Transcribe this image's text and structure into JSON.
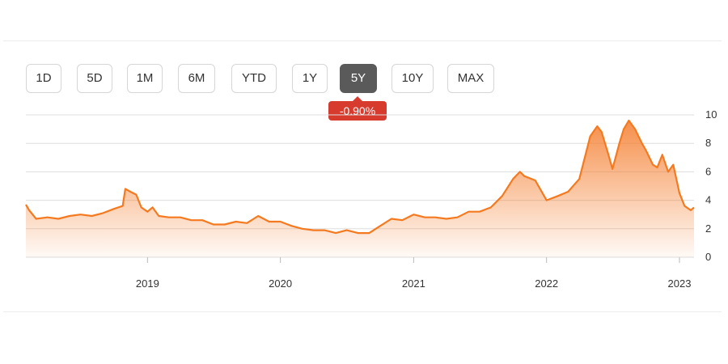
{
  "range_selector": {
    "buttons": [
      {
        "label": "1D",
        "active": false
      },
      {
        "label": "5D",
        "active": false
      },
      {
        "label": "1M",
        "active": false
      },
      {
        "label": "6M",
        "active": false
      },
      {
        "label": "YTD",
        "active": false
      },
      {
        "label": "1Y",
        "active": false
      },
      {
        "label": "5Y",
        "active": true
      },
      {
        "label": "10Y",
        "active": false
      },
      {
        "label": "MAX",
        "active": false
      }
    ]
  },
  "change_badge": {
    "text": "-0.90%",
    "color": "#d63b2e"
  },
  "colors": {
    "line": "#f57a1f",
    "area_top": "#f47b2a",
    "grid": "#dddddd"
  },
  "chart_data": {
    "type": "area",
    "title": "",
    "xlabel": "",
    "ylabel": "",
    "ylim": [
      0,
      10
    ],
    "y_ticks": [
      "0",
      "2",
      "4",
      "6",
      "8",
      "10"
    ],
    "y_axis_position": "right",
    "x_ticks": [
      {
        "label": "2019",
        "date": "2019-01-01"
      },
      {
        "label": "2020",
        "date": "2020-01-01"
      },
      {
        "label": "2021",
        "date": "2021-01-01"
      },
      {
        "label": "2022",
        "date": "2022-01-01"
      },
      {
        "label": "2023",
        "date": "2023-01-01"
      }
    ],
    "x_range": [
      "2018-02-01",
      "2023-02-10"
    ],
    "grid": true,
    "legend": "none",
    "series": [
      {
        "points": [
          [
            "2018-02-01",
            3.7
          ],
          [
            "2018-02-10",
            3.3
          ],
          [
            "2018-03-01",
            2.7
          ],
          [
            "2018-04-01",
            2.8
          ],
          [
            "2018-05-01",
            2.7
          ],
          [
            "2018-06-01",
            2.9
          ],
          [
            "2018-07-01",
            3.0
          ],
          [
            "2018-08-01",
            2.9
          ],
          [
            "2018-09-01",
            3.1
          ],
          [
            "2018-10-01",
            3.4
          ],
          [
            "2018-10-25",
            3.6
          ],
          [
            "2018-11-01",
            4.8
          ],
          [
            "2018-11-15",
            4.6
          ],
          [
            "2018-12-01",
            4.4
          ],
          [
            "2018-12-15",
            3.5
          ],
          [
            "2019-01-01",
            3.2
          ],
          [
            "2019-01-15",
            3.5
          ],
          [
            "2019-02-01",
            2.9
          ],
          [
            "2019-03-01",
            2.8
          ],
          [
            "2019-04-01",
            2.8
          ],
          [
            "2019-05-01",
            2.6
          ],
          [
            "2019-06-01",
            2.6
          ],
          [
            "2019-07-01",
            2.3
          ],
          [
            "2019-08-01",
            2.3
          ],
          [
            "2019-09-01",
            2.5
          ],
          [
            "2019-10-01",
            2.4
          ],
          [
            "2019-11-01",
            2.9
          ],
          [
            "2019-12-01",
            2.5
          ],
          [
            "2020-01-01",
            2.5
          ],
          [
            "2020-02-01",
            2.2
          ],
          [
            "2020-03-01",
            2.0
          ],
          [
            "2020-04-01",
            1.9
          ],
          [
            "2020-05-01",
            1.9
          ],
          [
            "2020-06-01",
            1.7
          ],
          [
            "2020-07-01",
            1.9
          ],
          [
            "2020-08-01",
            1.7
          ],
          [
            "2020-09-01",
            1.7
          ],
          [
            "2020-10-01",
            2.2
          ],
          [
            "2020-11-01",
            2.7
          ],
          [
            "2020-12-01",
            2.6
          ],
          [
            "2021-01-01",
            3.0
          ],
          [
            "2021-02-01",
            2.8
          ],
          [
            "2021-03-01",
            2.8
          ],
          [
            "2021-04-01",
            2.7
          ],
          [
            "2021-05-01",
            2.8
          ],
          [
            "2021-06-01",
            3.2
          ],
          [
            "2021-07-01",
            3.2
          ],
          [
            "2021-08-01",
            3.5
          ],
          [
            "2021-09-01",
            4.3
          ],
          [
            "2021-10-01",
            5.5
          ],
          [
            "2021-10-20",
            6.0
          ],
          [
            "2021-11-01",
            5.7
          ],
          [
            "2021-12-01",
            5.4
          ],
          [
            "2022-01-01",
            4.0
          ],
          [
            "2022-02-01",
            4.3
          ],
          [
            "2022-03-01",
            4.6
          ],
          [
            "2022-04-01",
            5.5
          ],
          [
            "2022-05-01",
            8.5
          ],
          [
            "2022-05-20",
            9.2
          ],
          [
            "2022-06-01",
            8.8
          ],
          [
            "2022-06-20",
            7.2
          ],
          [
            "2022-07-01",
            6.2
          ],
          [
            "2022-07-20",
            8.0
          ],
          [
            "2022-08-01",
            9.0
          ],
          [
            "2022-08-15",
            9.6
          ],
          [
            "2022-09-01",
            9.0
          ],
          [
            "2022-09-20",
            8.0
          ],
          [
            "2022-10-01",
            7.5
          ],
          [
            "2022-10-20",
            6.5
          ],
          [
            "2022-11-01",
            6.3
          ],
          [
            "2022-11-15",
            7.2
          ],
          [
            "2022-12-01",
            6.0
          ],
          [
            "2022-12-15",
            6.5
          ],
          [
            "2023-01-01",
            4.5
          ],
          [
            "2023-01-15",
            3.6
          ],
          [
            "2023-02-01",
            3.3
          ],
          [
            "2023-02-10",
            3.5
          ]
        ]
      }
    ]
  }
}
